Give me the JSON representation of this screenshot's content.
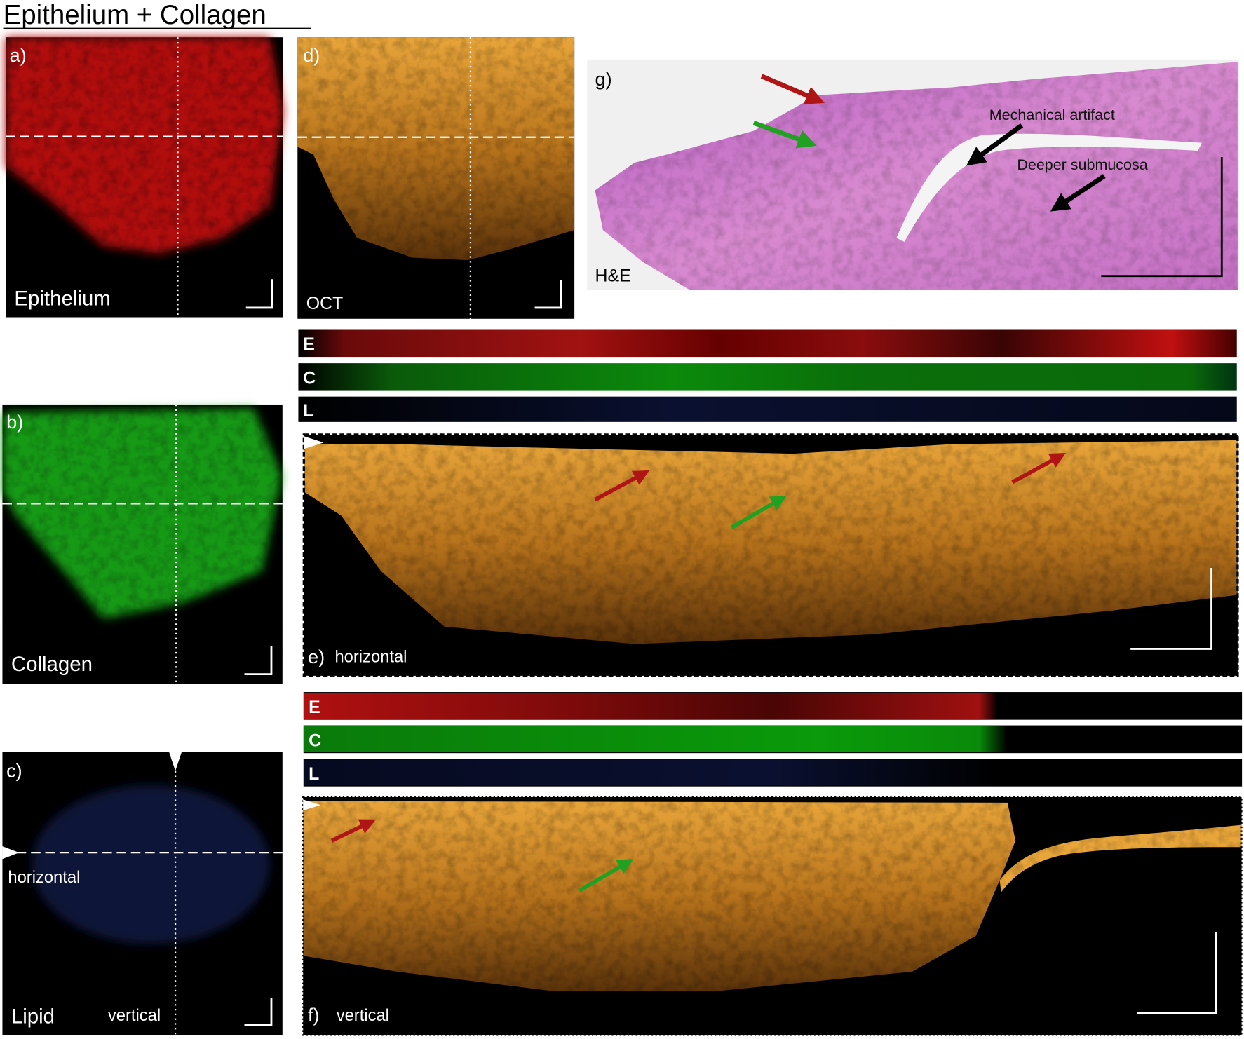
{
  "title": "Epithelium + Collagen",
  "panels": {
    "a": {
      "label": "a)",
      "caption": "Epithelium"
    },
    "b": {
      "label": "b)",
      "caption": "Collagen"
    },
    "c": {
      "label": "c)",
      "caption": "Lipid",
      "horizontal": "horizontal",
      "vertical": "vertical"
    },
    "d": {
      "label": "d)",
      "caption": "OCT"
    },
    "e": {
      "label": "e)",
      "caption": "horizontal"
    },
    "f": {
      "label": "f)",
      "caption": "vertical"
    },
    "g": {
      "label": "g)",
      "caption": "H&E",
      "annotations": [
        "Mechanical artifact",
        "Deeper submucosa"
      ]
    }
  },
  "channel_bars": {
    "e": [
      "E",
      "C",
      "L"
    ],
    "f": [
      "E",
      "C",
      "L"
    ]
  }
}
